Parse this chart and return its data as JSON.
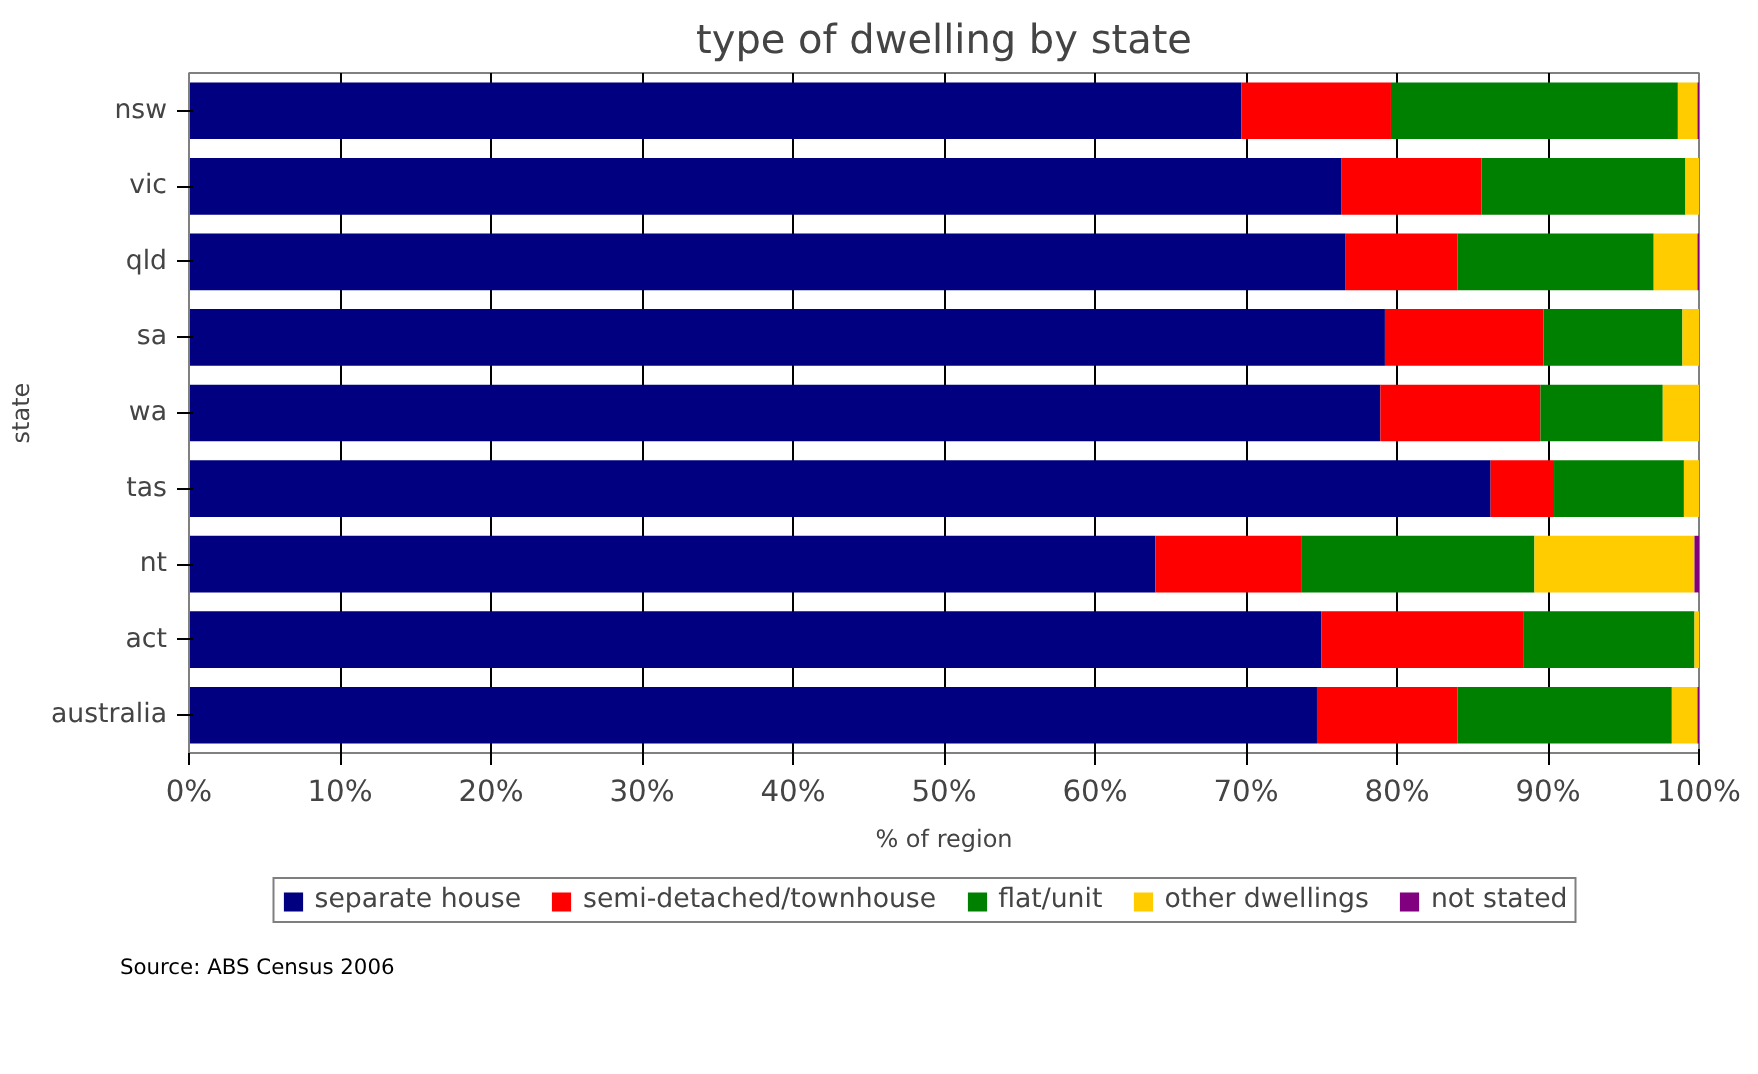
{
  "chart_data": {
    "type": "bar",
    "orientation": "horizontal",
    "stacked": true,
    "title": "type of dwelling by state",
    "xlabel": "% of region",
    "ylabel": "state",
    "categories": [
      "nsw",
      "vic",
      "qld",
      "sa",
      "wa",
      "tas",
      "nt",
      "act",
      "australia"
    ],
    "series": [
      {
        "name": "separate house",
        "color": "#000080",
        "values": [
          69.7,
          76.3,
          76.6,
          79.2,
          78.9,
          86.2,
          64.0,
          75.0,
          74.7
        ]
      },
      {
        "name": "semi-detached/townhouse",
        "color": "#ff0000",
        "values": [
          9.9,
          9.3,
          7.4,
          10.5,
          10.6,
          4.2,
          9.7,
          13.4,
          9.3
        ]
      },
      {
        "name": "flat/unit",
        "color": "#008000",
        "values": [
          19.0,
          13.5,
          13.0,
          9.2,
          8.1,
          8.6,
          15.4,
          11.3,
          14.2
        ]
      },
      {
        "name": "other dwellings",
        "color": "#ffcc00",
        "values": [
          1.3,
          0.9,
          2.9,
          1.1,
          2.4,
          1.0,
          10.6,
          0.3,
          1.7
        ]
      },
      {
        "name": "not stated",
        "color": "#800080",
        "values": [
          0.1,
          0.0,
          0.1,
          0.0,
          0.0,
          0.0,
          0.3,
          0.0,
          0.1
        ]
      }
    ],
    "xlim": [
      0,
      100
    ],
    "xticks": [
      {
        "value": 0,
        "label": "0%"
      },
      {
        "value": 10,
        "label": "10%"
      },
      {
        "value": 20,
        "label": "20%"
      },
      {
        "value": 30,
        "label": "30%"
      },
      {
        "value": 40,
        "label": "40%"
      },
      {
        "value": 50,
        "label": "50%"
      },
      {
        "value": 60,
        "label": "60%"
      },
      {
        "value": 70,
        "label": "70%"
      },
      {
        "value": 80,
        "label": "80%"
      },
      {
        "value": 90,
        "label": "90%"
      },
      {
        "value": 100,
        "label": "100%"
      }
    ],
    "grid": "x",
    "legend": "bottom",
    "annotations": [
      "Source: ABS Census 2006"
    ]
  }
}
